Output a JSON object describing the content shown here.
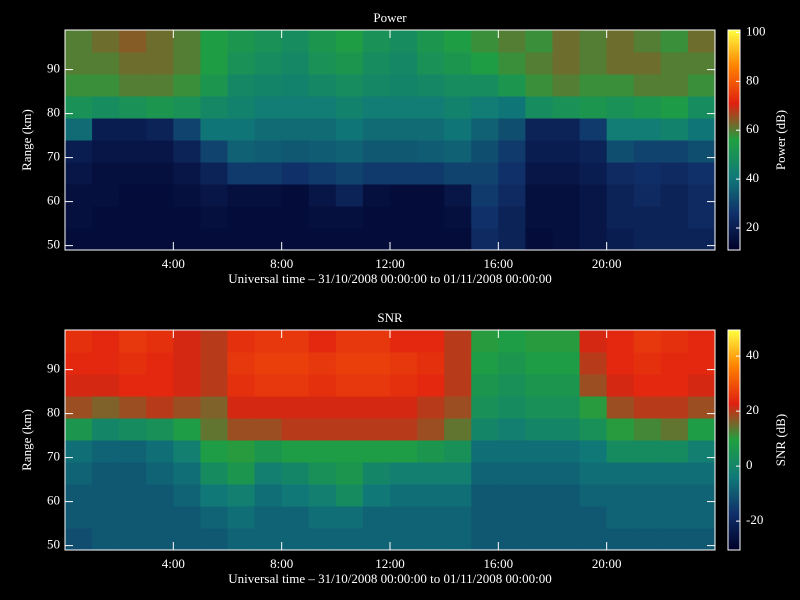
{
  "chart_data": [
    {
      "type": "heatmap",
      "title": "Power",
      "xlabel": "Universal time – 31/10/2008 00:00:00 to 01/11/2008 00:00:00",
      "ylabel": "Range (km)",
      "colorbar_label": "Power (dB)",
      "xlim": [
        0,
        24
      ],
      "xticks": [
        {
          "value": 4,
          "label": "4:00"
        },
        {
          "value": 8,
          "label": "8:00"
        },
        {
          "value": 12,
          "label": "12:00"
        },
        {
          "value": 16,
          "label": "16:00"
        },
        {
          "value": 20,
          "label": "20:00"
        }
      ],
      "ylim": [
        49,
        99
      ],
      "yticks": [
        50,
        60,
        70,
        80,
        90
      ],
      "clim": [
        11,
        101
      ],
      "cticks": [
        20,
        40,
        60,
        80,
        100
      ],
      "colorscale": [
        "#000028",
        "#10306a",
        "#107a78",
        "#20a040",
        "#e02010",
        "#ff8000",
        "#ffff40"
      ],
      "x": [
        0.5,
        1.5,
        2.5,
        3.5,
        4.5,
        5.5,
        6.5,
        7.5,
        8.5,
        9.5,
        10.5,
        11.5,
        12.5,
        13.5,
        14.5,
        15.5,
        16.5,
        17.5,
        18.5,
        19.5,
        20.5,
        21.5,
        22.5,
        23.5
      ],
      "y": [
        51.5,
        56.5,
        61.5,
        66.5,
        71.5,
        76.5,
        81.5,
        86.5,
        91.5,
        96.5
      ],
      "values": [
        [
          15,
          15,
          15,
          15,
          15,
          15,
          15,
          15,
          15,
          15,
          15,
          15,
          15,
          15,
          15,
          24,
          22,
          15,
          16,
          18,
          20,
          22,
          22,
          22
        ],
        [
          16,
          15,
          15,
          15,
          15,
          16,
          15,
          15,
          15,
          16,
          16,
          15,
          15,
          15,
          16,
          26,
          22,
          16,
          16,
          18,
          22,
          22,
          22,
          24
        ],
        [
          16,
          16,
          15,
          15,
          16,
          18,
          16,
          16,
          15,
          18,
          22,
          16,
          15,
          15,
          18,
          28,
          24,
          16,
          16,
          18,
          22,
          24,
          22,
          24
        ],
        [
          18,
          16,
          16,
          16,
          18,
          22,
          28,
          28,
          26,
          28,
          30,
          28,
          28,
          28,
          30,
          30,
          26,
          18,
          18,
          20,
          24,
          25,
          24,
          26
        ],
        [
          20,
          18,
          18,
          18,
          22,
          30,
          36,
          35,
          34,
          35,
          36,
          34,
          34,
          35,
          36,
          32,
          28,
          20,
          20,
          22,
          32,
          30,
          30,
          32
        ],
        [
          38,
          20,
          20,
          22,
          30,
          40,
          40,
          38,
          38,
          38,
          40,
          38,
          38,
          38,
          40,
          36,
          32,
          22,
          22,
          28,
          42,
          42,
          44,
          40
        ],
        [
          50,
          48,
          50,
          52,
          50,
          46,
          44,
          42,
          42,
          42,
          44,
          42,
          42,
          42,
          44,
          42,
          40,
          48,
          50,
          52,
          50,
          52,
          54,
          48
        ],
        [
          58,
          58,
          60,
          60,
          58,
          52,
          46,
          45,
          44,
          46,
          48,
          46,
          45,
          46,
          48,
          48,
          52,
          58,
          60,
          58,
          58,
          60,
          60,
          58
        ],
        [
          60,
          60,
          62,
          62,
          60,
          55,
          50,
          48,
          46,
          50,
          52,
          48,
          46,
          50,
          52,
          55,
          58,
          60,
          62,
          60,
          62,
          62,
          60,
          60
        ],
        [
          60,
          62,
          64,
          62,
          60,
          55,
          52,
          50,
          48,
          52,
          55,
          50,
          48,
          52,
          55,
          58,
          60,
          58,
          62,
          60,
          62,
          60,
          58,
          62
        ]
      ]
    },
    {
      "type": "heatmap",
      "title": "SNR",
      "xlabel": "Universal time – 31/10/2008 00:00:00 to 01/11/2008 00:00:00",
      "ylabel": "Range (km)",
      "colorbar_label": "SNR (dB)",
      "xlim": [
        0,
        24
      ],
      "xticks": [
        {
          "value": 4,
          "label": "4:00"
        },
        {
          "value": 8,
          "label": "8:00"
        },
        {
          "value": 12,
          "label": "12:00"
        },
        {
          "value": 16,
          "label": "16:00"
        },
        {
          "value": 20,
          "label": "20:00"
        }
      ],
      "ylim": [
        49,
        99
      ],
      "yticks": [
        50,
        60,
        70,
        80,
        90
      ],
      "clim": [
        -30.5,
        49.5
      ],
      "cticks": [
        -20,
        0,
        20,
        40
      ],
      "colorscale": [
        "#000028",
        "#10306a",
        "#107a78",
        "#20a040",
        "#e02010",
        "#ff8000",
        "#ffff40"
      ],
      "x": [
        0.5,
        1.5,
        2.5,
        3.5,
        4.5,
        5.5,
        6.5,
        7.5,
        8.5,
        9.5,
        10.5,
        11.5,
        12.5,
        13.5,
        14.5,
        15.5,
        16.5,
        17.5,
        18.5,
        19.5,
        20.5,
        21.5,
        22.5,
        23.5
      ],
      "y": [
        51.5,
        56.5,
        61.5,
        66.5,
        71.5,
        76.5,
        81.5,
        86.5,
        91.5,
        96.5
      ],
      "values": [
        [
          -12,
          -10,
          -10,
          -10,
          -10,
          -10,
          -8,
          -8,
          -8,
          -8,
          -8,
          -8,
          -8,
          -8,
          -8,
          -10,
          -10,
          -10,
          -10,
          -10,
          -10,
          -10,
          -10,
          -10
        ],
        [
          -10,
          -10,
          -10,
          -10,
          -10,
          -8,
          -6,
          -8,
          -8,
          -6,
          -6,
          -8,
          -8,
          -8,
          -8,
          -10,
          -10,
          -10,
          -10,
          -10,
          -8,
          -8,
          -8,
          -8
        ],
        [
          -10,
          -10,
          -10,
          -10,
          -8,
          -4,
          -2,
          -6,
          -4,
          -2,
          2,
          -4,
          -6,
          -6,
          -6,
          -10,
          -10,
          -10,
          -10,
          -8,
          -8,
          -8,
          -8,
          -8
        ],
        [
          -8,
          -10,
          -10,
          -8,
          -6,
          2,
          6,
          -2,
          0,
          4,
          6,
          0,
          -2,
          -2,
          -2,
          -8,
          -8,
          -8,
          -8,
          -6,
          -6,
          -6,
          -6,
          -6
        ],
        [
          -6,
          -8,
          -8,
          -6,
          -2,
          8,
          10,
          6,
          8,
          8,
          8,
          8,
          8,
          6,
          4,
          -6,
          -6,
          -6,
          -6,
          -4,
          2,
          2,
          2,
          -2
        ],
        [
          6,
          0,
          2,
          4,
          8,
          14,
          18,
          18,
          20,
          20,
          20,
          20,
          20,
          18,
          14,
          0,
          -2,
          0,
          0,
          4,
          10,
          12,
          14,
          8
        ],
        [
          18,
          16,
          18,
          20,
          18,
          16,
          22,
          22,
          22,
          22,
          22,
          22,
          22,
          20,
          18,
          4,
          2,
          4,
          4,
          10,
          18,
          20,
          20,
          18
        ],
        [
          22,
          22,
          24,
          24,
          22,
          20,
          25,
          26,
          26,
          25,
          26,
          26,
          25,
          24,
          20,
          6,
          4,
          6,
          6,
          18,
          22,
          24,
          24,
          22
        ],
        [
          24,
          24,
          25,
          24,
          22,
          20,
          26,
          27,
          27,
          26,
          27,
          27,
          26,
          25,
          20,
          8,
          6,
          8,
          8,
          20,
          24,
          25,
          24,
          24
        ],
        [
          25,
          24,
          26,
          25,
          22,
          20,
          25,
          26,
          26,
          24,
          26,
          26,
          24,
          24,
          20,
          10,
          8,
          10,
          10,
          22,
          24,
          26,
          25,
          24
        ]
      ]
    }
  ]
}
